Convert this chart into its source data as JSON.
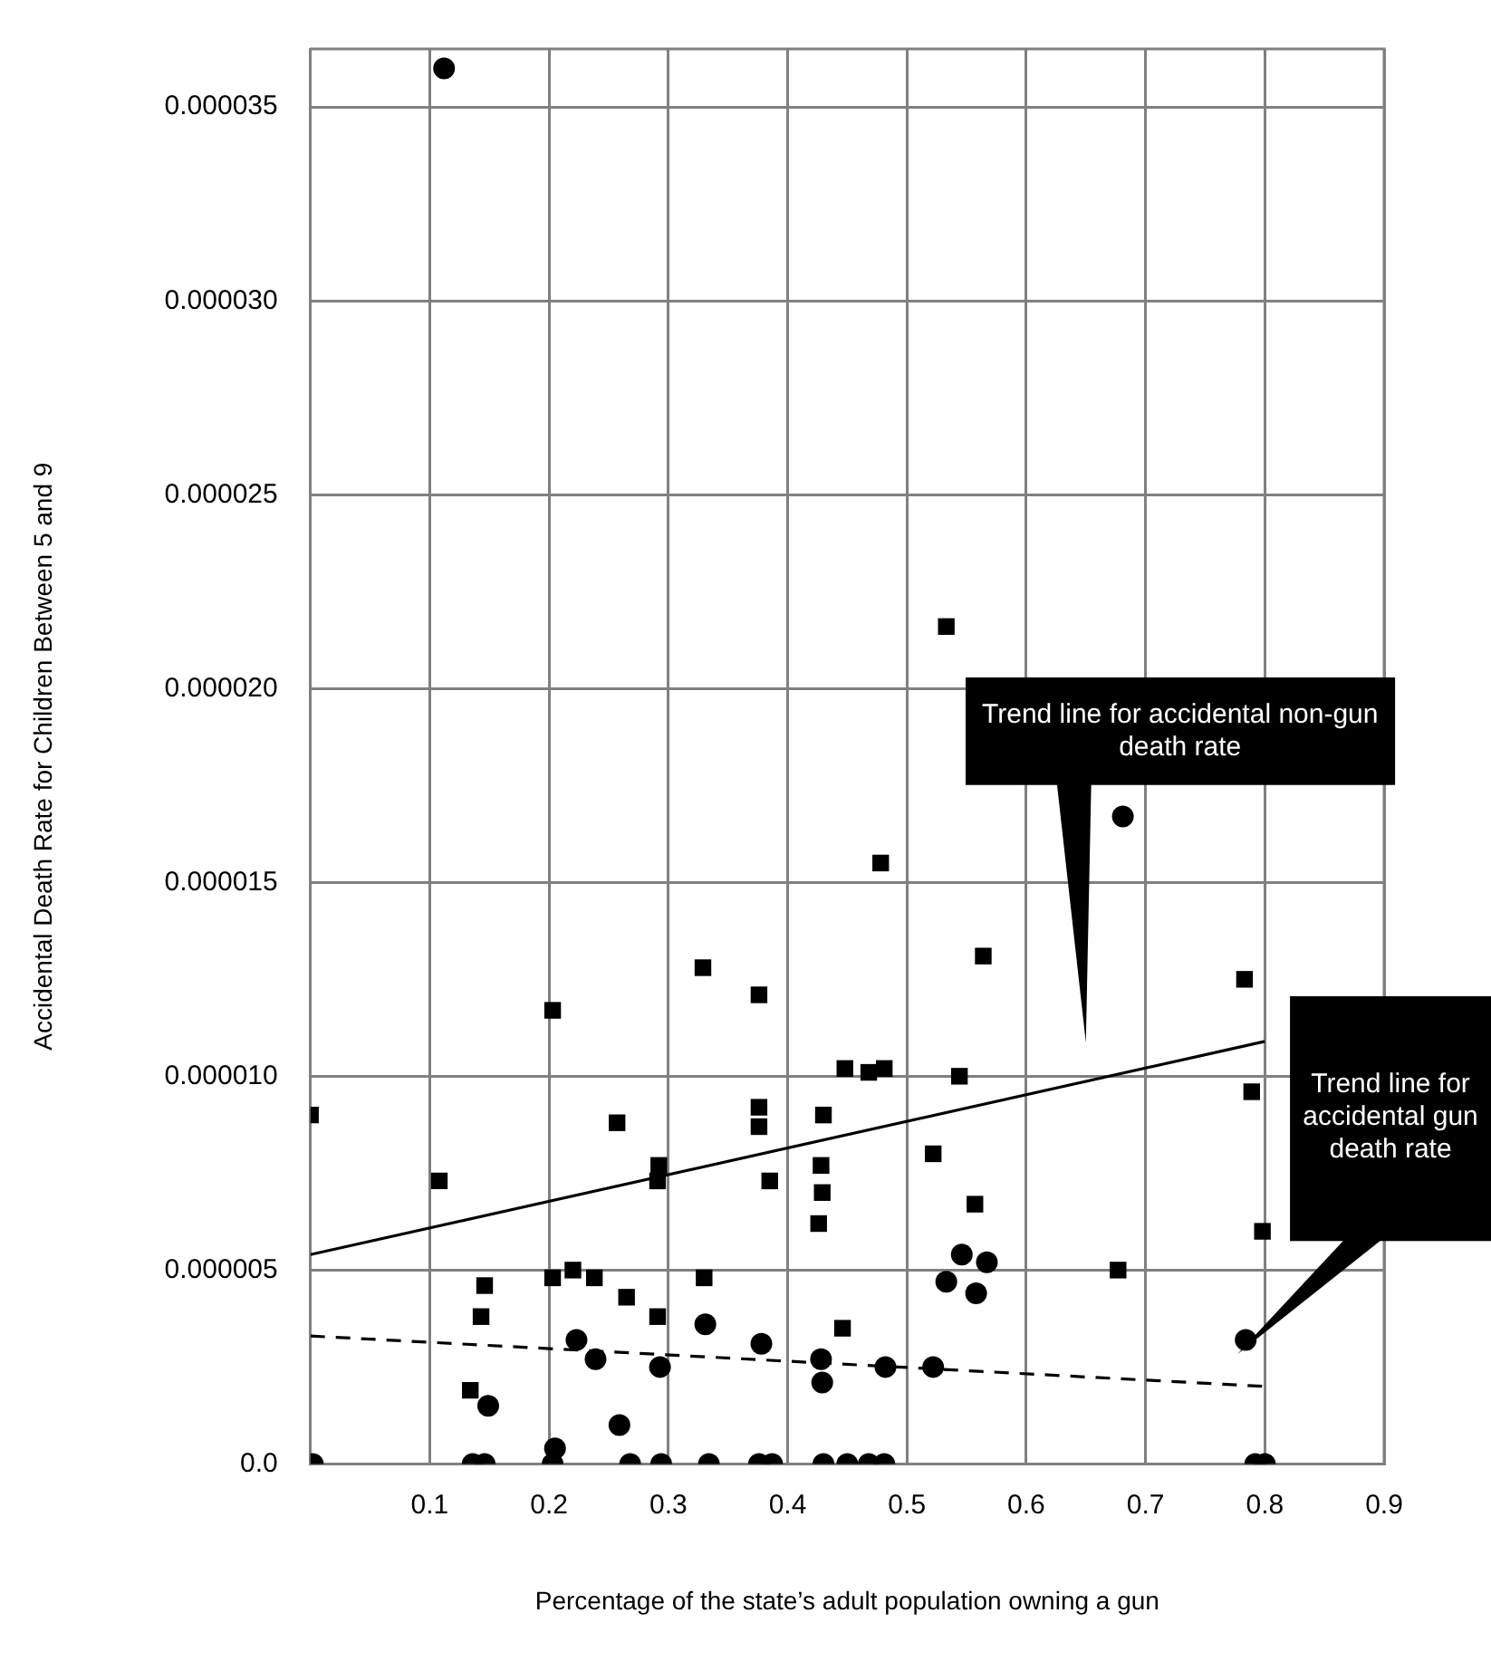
{
  "chart_data": {
    "type": "scatter",
    "xlabel": "Percentage of the state’s adult population owning a gun",
    "ylabel": "Accidental Death Rate for Children Between 5 and 9",
    "xlim": [
      0,
      0.9
    ],
    "xticks": [
      0.1,
      0.2,
      0.3,
      0.4,
      0.5,
      0.6,
      0.7,
      0.8,
      0.9
    ],
    "ylim": [
      0,
      3.65e-05
    ],
    "yticks": [
      {
        "value": 0,
        "label": "0.0"
      },
      {
        "value": 5e-06,
        "label": "0.000005"
      },
      {
        "value": 1e-05,
        "label": "0.000010"
      },
      {
        "value": 1.5e-05,
        "label": "0.000015"
      },
      {
        "value": 2e-05,
        "label": "0.000020"
      },
      {
        "value": 2.5e-05,
        "label": "0.000025"
      },
      {
        "value": 3e-05,
        "label": "0.000030"
      },
      {
        "value": 3.5e-05,
        "label": "0.000035"
      }
    ],
    "grid": true,
    "legend": false,
    "series": [
      {
        "type": "scatter",
        "marker": "square",
        "color": "#000000",
        "x": [
          0.0,
          0.108,
          0.203,
          0.146,
          0.143,
          0.134,
          0.203,
          0.22,
          0.238,
          0.257,
          0.265,
          0.291,
          0.292,
          0.291,
          0.329,
          0.33,
          0.376,
          0.376,
          0.376,
          0.385,
          0.43,
          0.428,
          0.429,
          0.426,
          0.446,
          0.448,
          0.468,
          0.481,
          0.478,
          0.544,
          0.522,
          0.557,
          0.564,
          0.677,
          0.783,
          0.789,
          0.798,
          0.533
        ],
        "values": [
          9e-06,
          7.3e-06,
          1.17e-05,
          4.6e-06,
          3.8e-06,
          1.9e-06,
          4.8e-06,
          5e-06,
          4.8e-06,
          8.8e-06,
          4.3e-06,
          3.8e-06,
          7.7e-06,
          7.3e-06,
          1.28e-05,
          4.8e-06,
          1.21e-05,
          9.2e-06,
          8.7e-06,
          7.3e-06,
          9e-06,
          7.7e-06,
          7e-06,
          6.2e-06,
          3.5e-06,
          1.02e-05,
          1.01e-05,
          1.02e-05,
          1.55e-05,
          1e-05,
          8e-06,
          6.7e-06,
          1.31e-05,
          5e-06,
          1.25e-05,
          9.6e-06,
          6e-06,
          2.16e-05
        ]
      },
      {
        "type": "scatter",
        "marker": "circle",
        "color": "#000000",
        "x": [
          0.112,
          0.002,
          0.136,
          0.146,
          0.149,
          0.203,
          0.205,
          0.223,
          0.239,
          0.259,
          0.268,
          0.293,
          0.294,
          0.331,
          0.334,
          0.378,
          0.376,
          0.387,
          0.428,
          0.429,
          0.43,
          0.45,
          0.468,
          0.481,
          0.482,
          0.522,
          0.546,
          0.567,
          0.533,
          0.558,
          0.681,
          0.784,
          0.792,
          0.8
        ],
        "values": [
          3.6e-05,
          0,
          0,
          0,
          1.5e-06,
          0,
          4e-07,
          3.2e-06,
          2.7e-06,
          1e-06,
          0,
          2.5e-06,
          0,
          3.6e-06,
          0,
          3.1e-06,
          0,
          0,
          2.7e-06,
          2.1e-06,
          0,
          0,
          0,
          0,
          2.5e-06,
          2.5e-06,
          5.4e-06,
          5.2e-06,
          4.7e-06,
          4.4e-06,
          1.67e-05,
          3.2e-06,
          0,
          0
        ]
      },
      {
        "type": "line",
        "line_style": "solid",
        "color": "#000000",
        "x": [
          0,
          0.8
        ],
        "values": [
          5.4e-06,
          1.09e-05
        ]
      },
      {
        "type": "line",
        "line_style": "dashed",
        "color": "#000000",
        "x": [
          0,
          0.8
        ],
        "values": [
          3.3e-06,
          2e-06
        ]
      }
    ],
    "annotations": [
      "Trend line for accidental non-gun death rate",
      "Trend line for accidental gun death rate"
    ]
  }
}
